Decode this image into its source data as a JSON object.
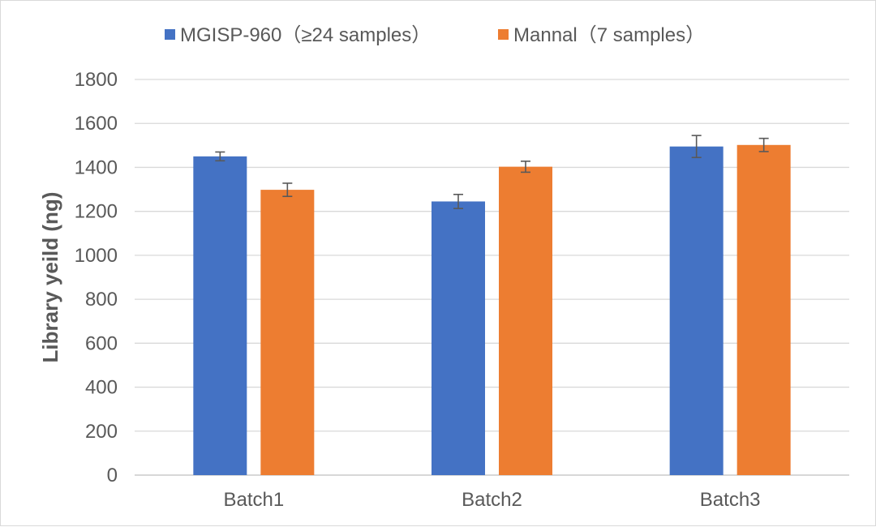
{
  "chart_data": {
    "type": "bar",
    "title": "",
    "xlabel": "",
    "ylabel": "Library yeild (ng)",
    "categories": [
      "Batch1",
      "Batch2",
      "Batch3"
    ],
    "series": [
      {
        "name": "MGISP-960（≥24 samples）",
        "color": "#4472C4",
        "values": [
          1450,
          1245,
          1495
        ],
        "errors": [
          20,
          32,
          50
        ]
      },
      {
        "name": "Mannal（7 samples）",
        "color": "#ED7D31",
        "values": [
          1298,
          1403,
          1502
        ],
        "errors": [
          30,
          25,
          30
        ]
      }
    ],
    "ylim": [
      0,
      1800
    ],
    "yticks": [
      "0",
      "200",
      "400",
      "600",
      "800",
      "1000",
      "1200",
      "1400",
      "1600",
      "1800"
    ],
    "grid": true,
    "legend_position": "top"
  }
}
